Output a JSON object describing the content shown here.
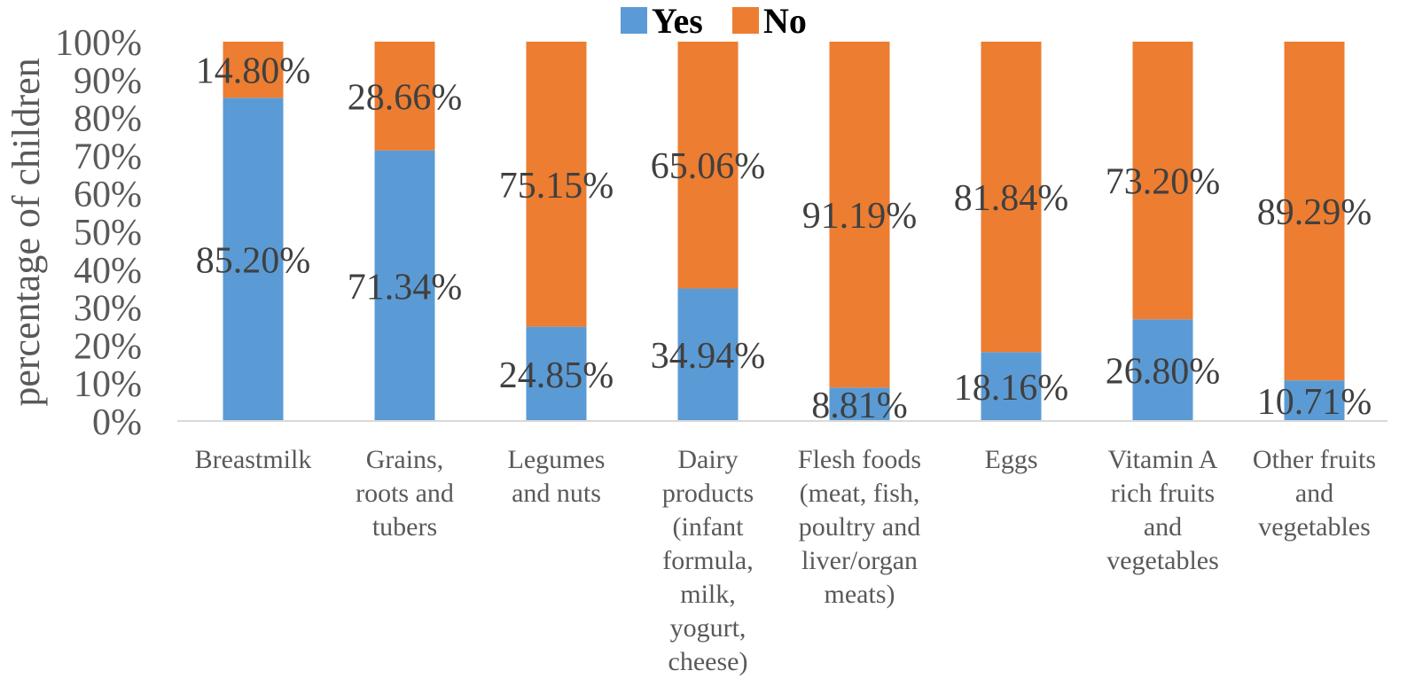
{
  "chart_data": {
    "type": "bar",
    "stacked": true,
    "percent": true,
    "title": "",
    "xlabel": "",
    "ylabel": "percentage of children",
    "ylim": [
      0,
      100
    ],
    "yticks": [
      "0%",
      "10%",
      "20%",
      "30%",
      "40%",
      "50%",
      "60%",
      "70%",
      "80%",
      "90%",
      "100%"
    ],
    "legend_position": "top-center",
    "categories": [
      [
        "Breastmilk"
      ],
      [
        "Grains,",
        "roots and",
        "tubers"
      ],
      [
        "Legumes",
        "and nuts"
      ],
      [
        "Dairy",
        "products",
        "(infant",
        "formula,",
        "milk,",
        "yogurt,",
        "cheese)"
      ],
      [
        "Flesh foods",
        "(meat, fish,",
        "poultry and",
        "liver/organ",
        "meats)"
      ],
      [
        "Eggs"
      ],
      [
        "Vitamin A",
        "rich fruits",
        "and",
        "vegetables"
      ],
      [
        "Other fruits",
        "and",
        "vegetables"
      ]
    ],
    "series": [
      {
        "name": "Yes",
        "color": "#5b9bd5",
        "values": [
          85.2,
          71.34,
          24.85,
          34.94,
          8.81,
          18.16,
          26.8,
          10.71
        ],
        "labels": [
          "85.20%",
          "71.34%",
          "24.85%",
          "34.94%",
          "8.81%",
          "18.16%",
          "26.80%",
          "10.71%"
        ]
      },
      {
        "name": "No",
        "color": "#ed7d31",
        "values": [
          14.8,
          28.66,
          75.15,
          65.06,
          91.19,
          81.84,
          73.2,
          89.29
        ],
        "labels": [
          "14.80%",
          "28.66%",
          "75.15%",
          "65.06%",
          "91.19%",
          "81.84%",
          "73.20%",
          "89.29%"
        ]
      }
    ]
  }
}
